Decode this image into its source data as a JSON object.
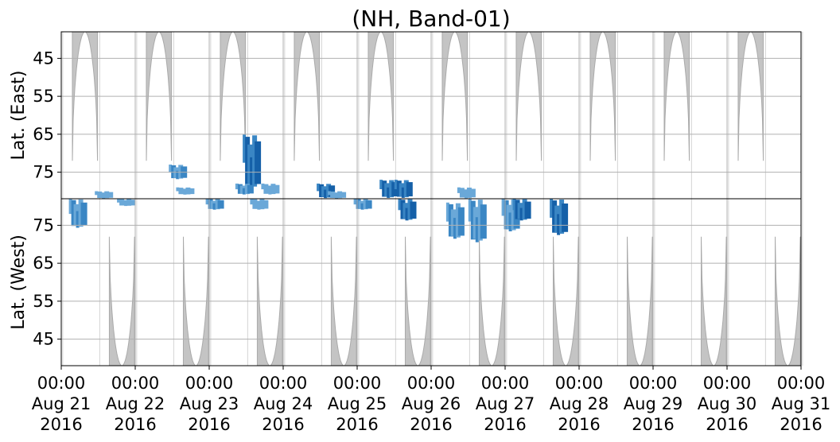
{
  "chart_data": {
    "type": "heatmap",
    "title": "(NH, Band-01)",
    "panels": [
      {
        "name": "east",
        "ylabel": "Lat. (East)",
        "yticks": [
          45,
          55,
          65,
          75
        ],
        "ylim": [
          38,
          82
        ],
        "y_direction": "increasing-downward"
      },
      {
        "name": "west",
        "ylabel": "Lat. (West)",
        "yticks": [
          75,
          65,
          55,
          45
        ],
        "ylim": [
          38,
          82
        ],
        "y_direction": "increasing-upward"
      }
    ],
    "xlim": [
      "2016-08-21 00:00",
      "2016-08-31 00:00"
    ],
    "xticks": [
      {
        "time": "00:00",
        "date": "Aug 21",
        "year": "2016"
      },
      {
        "time": "00:00",
        "date": "Aug 22",
        "year": "2016"
      },
      {
        "time": "00:00",
        "date": "Aug 23",
        "year": "2016"
      },
      {
        "time": "00:00",
        "date": "Aug 24",
        "year": "2016"
      },
      {
        "time": "00:00",
        "date": "Aug 25",
        "year": "2016"
      },
      {
        "time": "00:00",
        "date": "Aug 26",
        "year": "2016"
      },
      {
        "time": "00:00",
        "date": "Aug 27",
        "year": "2016"
      },
      {
        "time": "00:00",
        "date": "Aug 28",
        "year": "2016"
      },
      {
        "time": "00:00",
        "date": "Aug 29",
        "year": "2016"
      },
      {
        "time": "00:00",
        "date": "Aug 30",
        "year": "2016"
      },
      {
        "time": "00:00",
        "date": "Aug 31",
        "year": "2016"
      }
    ],
    "grid": true,
    "colors": {
      "daylight_mask": "#c4c4c4",
      "daylight_edge": "#aaaaaa",
      "detection_light": "#6aa8d8",
      "detection_mid": "#3a86c4",
      "detection_dark": "#1560a8"
    },
    "daylight_regions": {
      "east_center_days": [
        0.32,
        1.32,
        2.32,
        3.32,
        4.32,
        5.32,
        6.32,
        7.32,
        8.32,
        9.32
      ],
      "east_half_width_days": 0.17,
      "east_min_lat": 72,
      "west_center_days": [
        0.82,
        1.82,
        2.82,
        3.82,
        4.82,
        5.82,
        6.82,
        7.82,
        8.82,
        9.82
      ],
      "west_half_width_days": 0.17,
      "west_min_lat": 72
    },
    "detections": [
      {
        "panel": "east",
        "day": 0.55,
        "lat_min": 80,
        "lat_max": 82,
        "intensity": 0.6
      },
      {
        "panel": "east",
        "day": 1.55,
        "lat_min": 73,
        "lat_max": 77,
        "intensity": 0.8
      },
      {
        "panel": "east",
        "day": 1.65,
        "lat_min": 79,
        "lat_max": 81,
        "intensity": 0.5
      },
      {
        "panel": "east",
        "day": 2.55,
        "lat_min": 65,
        "lat_max": 80,
        "intensity": 1.0
      },
      {
        "panel": "east",
        "day": 2.45,
        "lat_min": 78,
        "lat_max": 81,
        "intensity": 0.7
      },
      {
        "panel": "east",
        "day": 2.8,
        "lat_min": 78,
        "lat_max": 81,
        "intensity": 0.5
      },
      {
        "panel": "east",
        "day": 3.55,
        "lat_min": 78,
        "lat_max": 82,
        "intensity": 1.0
      },
      {
        "panel": "east",
        "day": 3.7,
        "lat_min": 80,
        "lat_max": 82,
        "intensity": 0.5
      },
      {
        "panel": "east",
        "day": 4.4,
        "lat_min": 77,
        "lat_max": 82,
        "intensity": 0.9
      },
      {
        "panel": "east",
        "day": 4.6,
        "lat_min": 77,
        "lat_max": 82,
        "intensity": 1.0
      },
      {
        "panel": "east",
        "day": 5.45,
        "lat_min": 79,
        "lat_max": 82,
        "intensity": 0.5
      },
      {
        "panel": "west",
        "day": 0.2,
        "lat_min": 74,
        "lat_max": 82,
        "intensity": 0.7
      },
      {
        "panel": "west",
        "day": 0.85,
        "lat_min": 80,
        "lat_max": 82,
        "intensity": 0.5
      },
      {
        "panel": "west",
        "day": 2.05,
        "lat_min": 79,
        "lat_max": 82,
        "intensity": 0.7
      },
      {
        "panel": "west",
        "day": 2.65,
        "lat_min": 79,
        "lat_max": 82,
        "intensity": 0.6
      },
      {
        "panel": "west",
        "day": 4.05,
        "lat_min": 79,
        "lat_max": 82,
        "intensity": 0.8
      },
      {
        "panel": "west",
        "day": 4.65,
        "lat_min": 76,
        "lat_max": 82,
        "intensity": 0.9
      },
      {
        "panel": "west",
        "day": 5.3,
        "lat_min": 71,
        "lat_max": 81,
        "intensity": 0.8
      },
      {
        "panel": "west",
        "day": 5.6,
        "lat_min": 70,
        "lat_max": 82,
        "intensity": 0.7
      },
      {
        "panel": "west",
        "day": 6.05,
        "lat_min": 73,
        "lat_max": 82,
        "intensity": 0.8
      },
      {
        "panel": "west",
        "day": 6.2,
        "lat_min": 76,
        "lat_max": 82,
        "intensity": 0.9
      },
      {
        "panel": "west",
        "day": 6.7,
        "lat_min": 72,
        "lat_max": 82,
        "intensity": 1.0
      }
    ]
  }
}
